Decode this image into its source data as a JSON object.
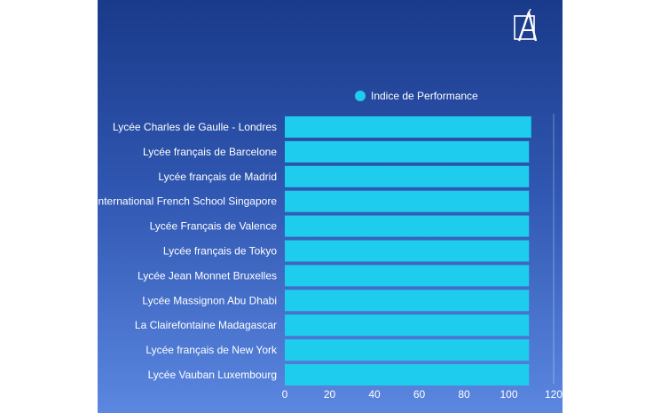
{
  "logo_icon": "pen-nib-logo-icon",
  "colors": {
    "bar": "#1ecdee",
    "background_top": "#1a3a8a",
    "background_bottom": "#5b87e0",
    "text": "#ffffff"
  },
  "chart_data": {
    "type": "bar",
    "orientation": "horizontal",
    "categories": [
      "Lycée Charles de Gaulle - Londres",
      "Lycée français de Barcelone",
      "Lycée français de Madrid",
      "International French School Singapore",
      "Lycée Français de Valence",
      "Lycée français de Tokyo",
      "Lycée Jean Monnet Bruxelles",
      "Lycée Massignon Abu Dhabi",
      "La Clairefontaine Madagascar",
      "Lycée français de New York",
      "Lycée Vauban Luxembourg"
    ],
    "series": [
      {
        "name": "Indice de Performance",
        "values": [
          110,
          109,
          109,
          109,
          109,
          109,
          109,
          109,
          109,
          109,
          109
        ]
      }
    ],
    "xlim": [
      0,
      120
    ],
    "xticks": [
      "0",
      "20",
      "40",
      "60",
      "80",
      "100",
      "120"
    ],
    "legend_position": "top",
    "grid": false
  }
}
